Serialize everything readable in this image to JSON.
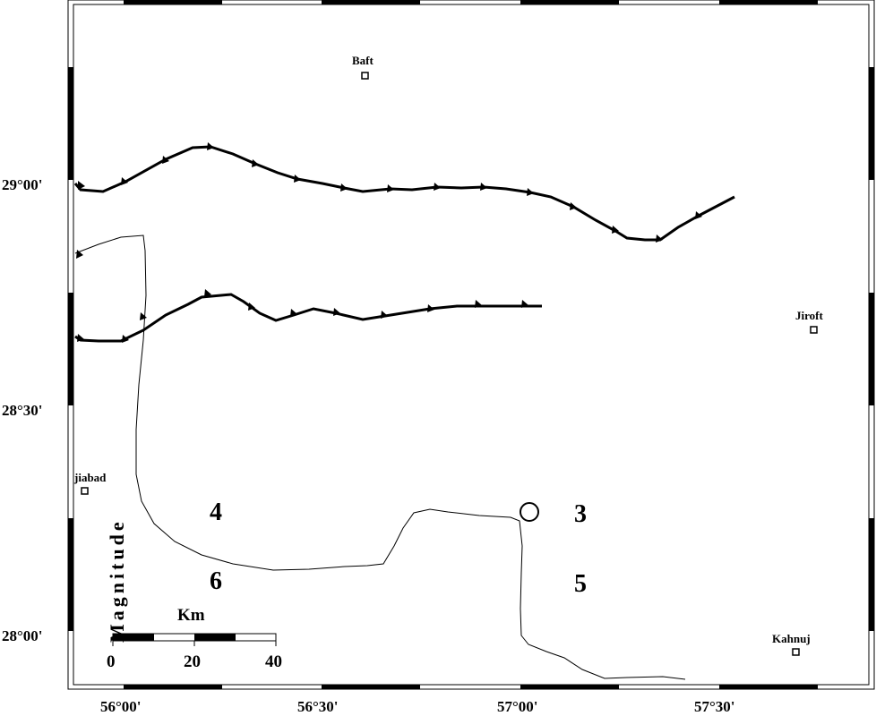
{
  "map": {
    "lat_labels": [
      "29°00'",
      "28°30'",
      "28°00'"
    ],
    "lon_labels": [
      "56°00'",
      "56°30'",
      "57°00'",
      "57°30'"
    ],
    "cities": [
      {
        "name": "Baft"
      },
      {
        "name": "Jiroft"
      },
      {
        "name": "jiabad"
      },
      {
        "name": "Kahnuj"
      }
    ],
    "magnitude_labels": [
      "4",
      "6",
      "3",
      "5"
    ],
    "legend_title": "Magnitude",
    "scalebar": {
      "unit": "Km",
      "ticks": [
        "0",
        "20",
        "40"
      ]
    },
    "colors": {
      "ink": "#000000",
      "background": "#ffffff"
    }
  }
}
